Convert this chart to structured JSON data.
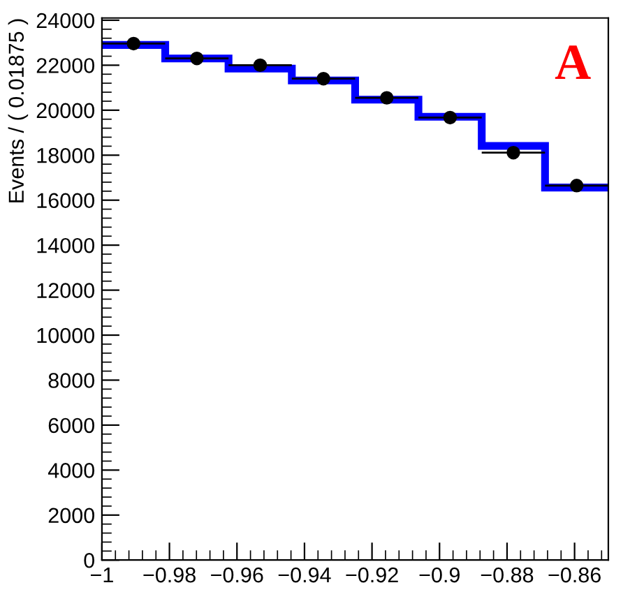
{
  "chart_data": {
    "type": "histogram",
    "ylabel": "Events / ( 0.01875 )",
    "annotations": [
      "A"
    ],
    "bins": [
      -1,
      -0.98125,
      -0.9625,
      -0.94375,
      -0.925,
      -0.90625,
      -0.8875,
      -0.86875,
      -0.85
    ],
    "values": [
      22900,
      22300,
      21850,
      21320,
      20470,
      19710,
      18410,
      16560
    ],
    "color": "#0000ff",
    "series": [
      {
        "type": "scatter",
        "color": "#000000",
        "marker": "circle",
        "x": [
          -0.990625,
          -0.971875,
          -0.953125,
          -0.934375,
          -0.915625,
          -0.896875,
          -0.878125,
          -0.859375
        ],
        "values": [
          22960,
          22300,
          22000,
          21400,
          20550,
          19670,
          18110,
          16650
        ],
        "xerrors": [
          0.009375,
          0.009375,
          0.009375,
          0.009375,
          0.009375,
          0.009375,
          0.009375,
          0.009375
        ]
      }
    ],
    "xlim": [
      -1,
      -0.85
    ],
    "ylim": [
      0,
      24100
    ],
    "xticks": [
      {
        "value": -1,
        "label": "−1"
      },
      {
        "value": -0.98,
        "label": "−0.98"
      },
      {
        "value": -0.96,
        "label": "−0.96"
      },
      {
        "value": -0.94,
        "label": "−0.94"
      },
      {
        "value": -0.92,
        "label": "−0.92"
      },
      {
        "value": -0.9,
        "label": "−0.9"
      },
      {
        "value": -0.88,
        "label": "−0.88"
      },
      {
        "value": -0.86,
        "label": "−0.86"
      }
    ],
    "yticks": [
      0,
      2000,
      4000,
      6000,
      8000,
      10000,
      12000,
      14000,
      16000,
      18000,
      20000,
      22000,
      24000
    ],
    "grid": false,
    "legend": false
  }
}
